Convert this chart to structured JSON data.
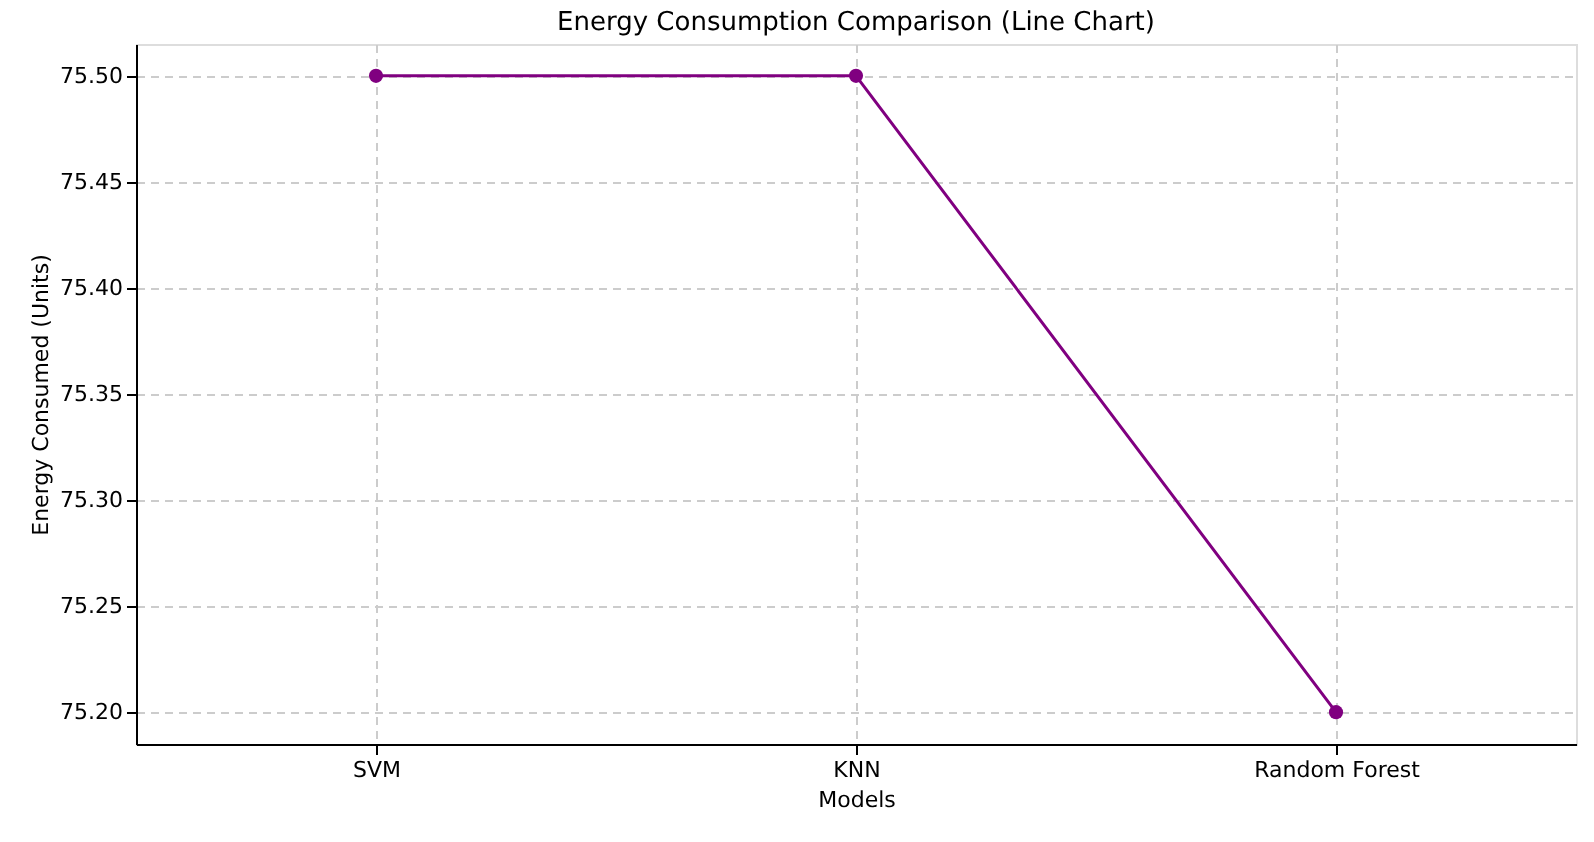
{
  "chart_data": {
    "type": "line",
    "title": "Energy Consumption Comparison (Line Chart)",
    "xlabel": "Models",
    "ylabel": "Energy Consumed (Units)",
    "categories": [
      "SVM",
      "KNN",
      "Random Forest"
    ],
    "series": [
      {
        "color": "#800080",
        "values": [
          75.5,
          75.5,
          75.2
        ]
      }
    ],
    "ylim": [
      75.185,
      75.515
    ],
    "yticks": [
      {
        "value": 75.2,
        "label": "75.20"
      },
      {
        "value": 75.25,
        "label": "75.25"
      },
      {
        "value": 75.3,
        "label": "75.30"
      },
      {
        "value": 75.35,
        "label": "75.35"
      },
      {
        "value": 75.4,
        "label": "75.40"
      },
      {
        "value": 75.45,
        "label": "75.45"
      },
      {
        "value": 75.5,
        "label": "75.50"
      }
    ],
    "grid": true,
    "marker": "circle",
    "line_style": "solid"
  }
}
